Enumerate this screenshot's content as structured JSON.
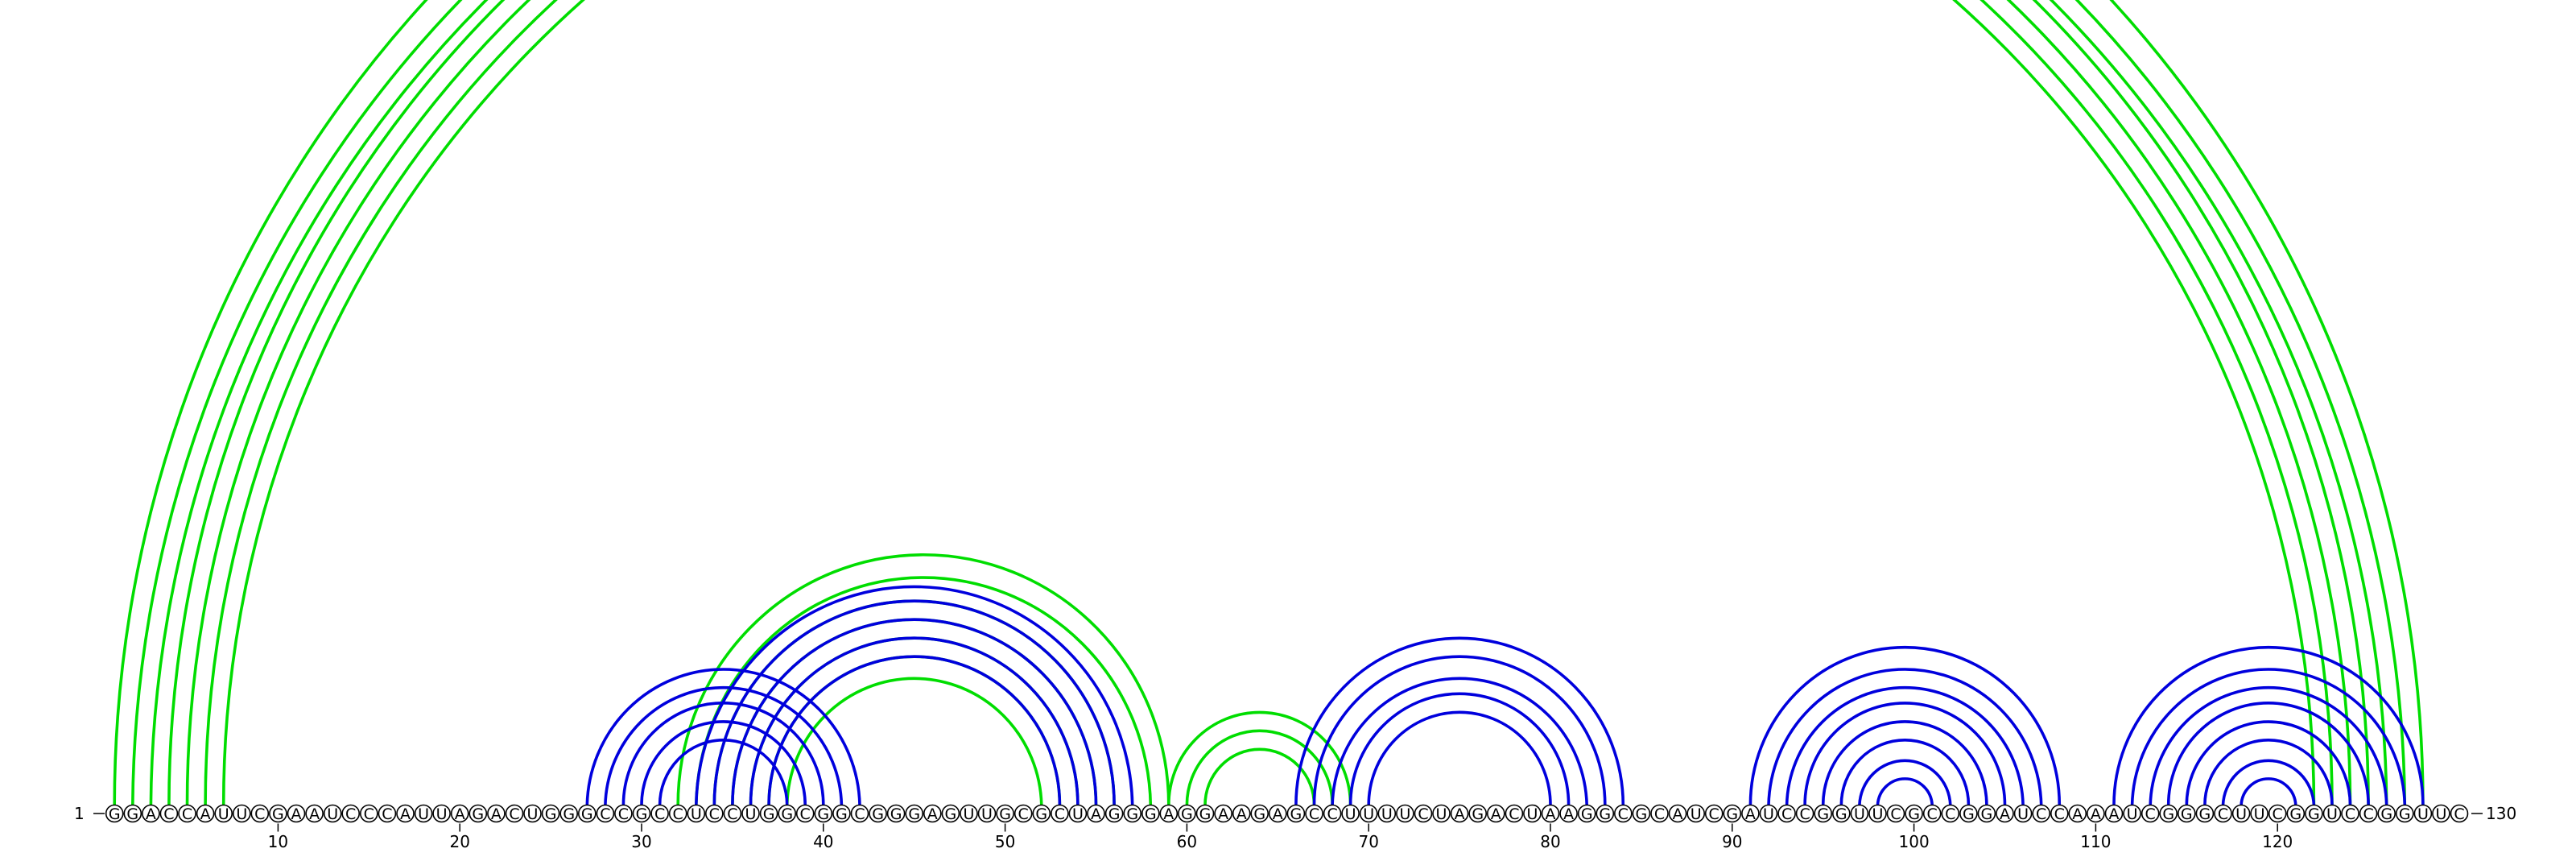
{
  "sequence": "GGACCAUUCGAAUCCCAUUAGACUGGGCCGCCUCCUGGCGGCGGGAGUUGCGCUAGGGAGGAAGAGCCUUUUCUAGACUAAGGCGCAUCGAUCCGGUUCGCCGGAUCCAAAUCGGGCUUCGGUCCGGUUC",
  "start_label": "1",
  "end_label": "130",
  "ticks": [
    {
      "pos": 10,
      "label": "10"
    },
    {
      "pos": 20,
      "label": "20"
    },
    {
      "pos": 30,
      "label": "30"
    },
    {
      "pos": 40,
      "label": "40"
    },
    {
      "pos": 50,
      "label": "50"
    },
    {
      "pos": 60,
      "label": "60"
    },
    {
      "pos": 70,
      "label": "70"
    },
    {
      "pos": 80,
      "label": "80"
    },
    {
      "pos": 90,
      "label": "90"
    },
    {
      "pos": 100,
      "label": "100"
    },
    {
      "pos": 110,
      "label": "110"
    },
    {
      "pos": 120,
      "label": "120"
    }
  ],
  "colors": {
    "green": "#00dd00",
    "blue": "#0000dd"
  },
  "helices": [
    {
      "color": "green",
      "pairs": [
        [
          1,
          128
        ],
        [
          2,
          127
        ],
        [
          3,
          126
        ],
        [
          4,
          125
        ],
        [
          5,
          124
        ],
        [
          6,
          123
        ],
        [
          7,
          122
        ]
      ]
    },
    {
      "color": "green",
      "pairs": [
        [
          32,
          59
        ],
        [
          33,
          58
        ],
        [
          34,
          56
        ],
        [
          35,
          55
        ],
        [
          36,
          54
        ],
        [
          37,
          53
        ],
        [
          38,
          52
        ]
      ]
    },
    {
      "color": "blue",
      "pairs": [
        [
          27,
          42
        ],
        [
          28,
          41
        ],
        [
          29,
          40
        ],
        [
          30,
          39
        ],
        [
          31,
          38
        ]
      ]
    },
    {
      "color": "blue",
      "pairs": [
        [
          33,
          57
        ],
        [
          34,
          56
        ],
        [
          35,
          55
        ],
        [
          36,
          54
        ],
        [
          37,
          53
        ]
      ]
    },
    {
      "color": "green",
      "pairs": [
        [
          59,
          69
        ],
        [
          60,
          68
        ],
        [
          61,
          67
        ]
      ]
    },
    {
      "color": "blue",
      "pairs": [
        [
          66,
          84
        ],
        [
          67,
          83
        ],
        [
          68,
          82
        ],
        [
          69,
          81
        ],
        [
          70,
          80
        ]
      ]
    },
    {
      "color": "blue",
      "pairs": [
        [
          91,
          108
        ],
        [
          92,
          107
        ],
        [
          93,
          106
        ],
        [
          94,
          105
        ],
        [
          95,
          104
        ],
        [
          96,
          103
        ],
        [
          97,
          102
        ],
        [
          98,
          101
        ]
      ]
    },
    {
      "color": "blue",
      "pairs": [
        [
          111,
          128
        ],
        [
          112,
          127
        ],
        [
          113,
          126
        ],
        [
          114,
          125
        ],
        [
          115,
          124
        ],
        [
          116,
          123
        ],
        [
          117,
          122
        ],
        [
          118,
          121
        ]
      ]
    }
  ]
}
